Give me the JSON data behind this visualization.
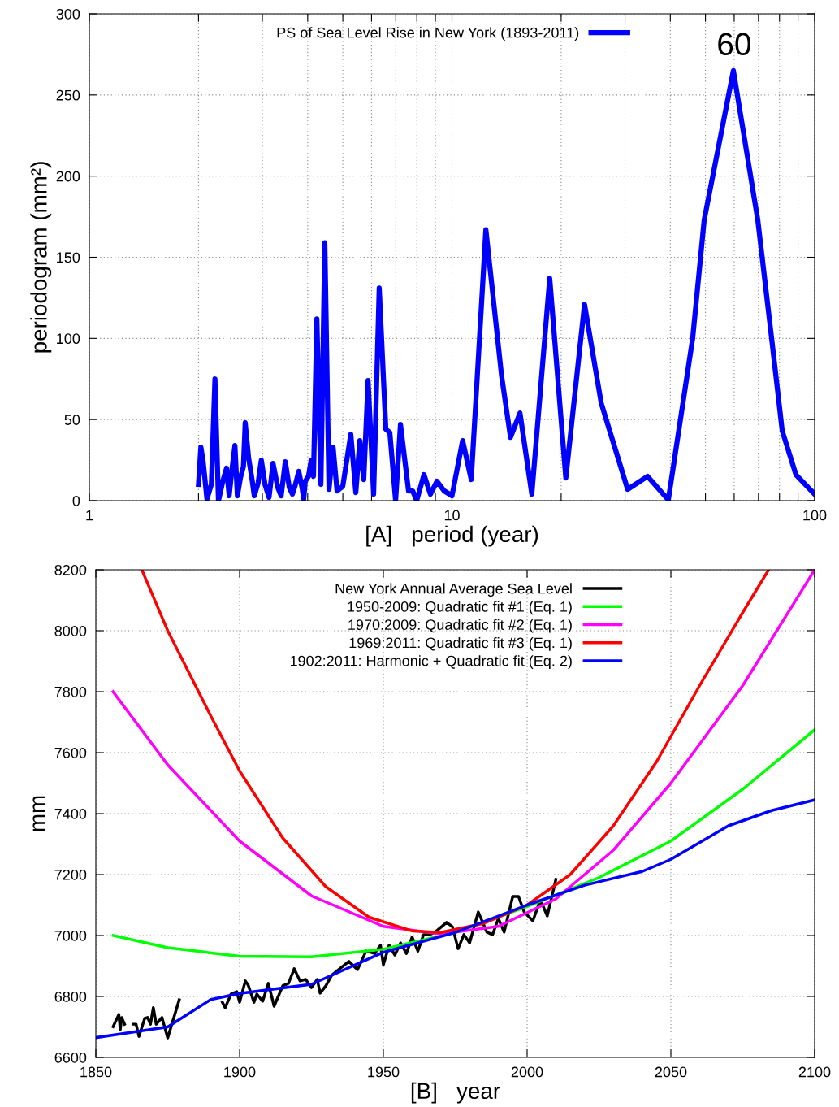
{
  "chart_data": [
    {
      "type": "line",
      "xlabel": "[A]   period (year)",
      "ylabel": "periodogram (mm²)",
      "log": "x",
      "grid": true,
      "legend": "top",
      "xlim": [
        1,
        100
      ],
      "ylim": [
        0,
        300
      ],
      "xticks": [
        1,
        {
          "value": 2,
          "label": null
        },
        {
          "value": 3,
          "label": null
        },
        {
          "value": 4,
          "label": null
        },
        {
          "value": 5,
          "label": null
        },
        {
          "value": 6,
          "label": null
        },
        {
          "value": 7,
          "label": null
        },
        {
          "value": 8,
          "label": null
        },
        {
          "value": 9,
          "label": null
        },
        10,
        {
          "value": 20,
          "label": null
        },
        {
          "value": 30,
          "label": null
        },
        {
          "value": 40,
          "label": null
        },
        {
          "value": 50,
          "label": null
        },
        {
          "value": 60,
          "label": null
        },
        {
          "value": 70,
          "label": null
        },
        {
          "value": 80,
          "label": null
        },
        {
          "value": 90,
          "label": null
        },
        100
      ],
      "yticks": [
        0,
        50,
        100,
        150,
        200,
        250,
        300
      ],
      "annotations": [
        {
          "text": "60",
          "x": 60,
          "y": 265
        }
      ],
      "series": [
        {
          "name": "PS of Sea Level Rise in New York (1893-2011)",
          "color": "#0000ff",
          "x": [
            2.0,
            2.03,
            2.06,
            2.11,
            2.17,
            2.22,
            2.27,
            2.34,
            2.39,
            2.43,
            2.47,
            2.52,
            2.56,
            2.61,
            2.66,
            2.69,
            2.75,
            2.81,
            2.85,
            2.92,
            2.98,
            3.05,
            3.13,
            3.21,
            3.31,
            3.38,
            3.47,
            3.56,
            3.63,
            3.69,
            3.78,
            3.86,
            3.9,
            3.94,
            4.02,
            4.09,
            4.15,
            4.24,
            4.35,
            4.46,
            4.58,
            4.7,
            4.82,
            5.0,
            5.26,
            5.43,
            5.57,
            5.71,
            5.87,
            6.08,
            6.3,
            6.57,
            6.74,
            6.99,
            7.21,
            7.59,
            7.79,
            7.99,
            8.37,
            8.72,
            9.09,
            9.52,
            10.0,
            10.7,
            11.3,
            12.4,
            13.7,
            14.5,
            15.4,
            16.6,
            18.6,
            20.6,
            23.2,
            25.8,
            30.5,
            34.6,
            39.5,
            46.1,
            49.6,
            59.7,
            69.7,
            76.1,
            81.4,
            88.8,
            100
          ],
          "values": [
            10,
            33,
            24,
            1,
            10,
            75,
            0,
            13,
            20,
            3,
            18,
            34,
            3,
            14,
            21,
            48,
            26,
            13,
            3,
            11,
            25,
            10,
            2,
            23,
            8,
            3,
            24,
            8,
            4,
            9,
            18,
            8,
            1,
            12,
            15,
            25,
            15,
            112,
            10,
            159,
            7,
            33,
            6,
            9,
            41,
            5,
            37,
            13,
            74,
            4,
            131,
            44,
            42,
            0,
            47,
            6,
            6,
            0,
            16,
            4,
            12,
            6,
            3,
            37,
            13,
            167,
            77,
            39,
            54,
            4,
            137,
            14,
            121,
            60,
            7,
            15,
            0.5,
            100,
            173,
            265,
            173,
            100,
            43,
            16,
            4
          ]
        }
      ]
    },
    {
      "type": "line",
      "xlabel": "[B]   year",
      "ylabel": "mm",
      "grid": true,
      "legend": "top",
      "xlim": [
        1850,
        2100
      ],
      "ylim": [
        6600,
        8200
      ],
      "xticks": [
        1850,
        1900,
        1950,
        2000,
        2050,
        2100
      ],
      "yticks": [
        6600,
        6800,
        7000,
        7200,
        7400,
        7600,
        7800,
        8000,
        8200
      ],
      "series": [
        {
          "name": "New York Annual Average Sea Level",
          "color": "#000000",
          "x": [
            1856,
            1858,
            1858.5,
            1859,
            1860,
            1861,
            1863,
            1864,
            1865,
            1867,
            1868,
            1869,
            1870,
            1871,
            1873,
            1875,
            1879,
            1885,
            1894,
            1895,
            1897,
            1899,
            1900,
            1902,
            1903,
            1905,
            1906,
            1908,
            1910,
            1912,
            1915,
            1917,
            1919,
            1921,
            1923,
            1925,
            1927,
            1928,
            1930,
            1932,
            1933,
            1938,
            1941,
            1944,
            1947,
            1949,
            1950,
            1952,
            1954,
            1956,
            1958,
            1960,
            1962,
            1964,
            1966,
            1968,
            1972,
            1974,
            1976,
            1978,
            1980,
            1983,
            1986,
            1988,
            1990,
            1992,
            1995,
            1997,
            1999,
            2002,
            2004,
            2005,
            2007,
            2010
          ],
          "values": [
            6701,
            6741,
            6691,
            6731,
            6709,
            null,
            6709,
            6709,
            6669,
            6728,
            6731,
            6709,
            6763,
            6709,
            6731,
            6664,
            6789,
            null,
            6781,
            6763,
            6808,
            6816,
            6781,
            6851,
            6837,
            6781,
            6808,
            6784,
            6843,
            6768,
            6835,
            6843,
            6891,
            6851,
            6856,
            6829,
            6856,
            6811,
            6835,
            6869,
            6877,
            6915,
            6888,
            6949,
            6941,
            6968,
            6904,
            6968,
            6936,
            6976,
            6941,
            6995,
            6949,
            7003,
            7003,
            7011,
            7043,
            7029,
            6957,
            7003,
            6976,
            7077,
            7011,
            7003,
            7056,
            7011,
            7128,
            7128,
            7077,
            7048,
            7101,
            7109,
            7064,
            7184
          ]
        },
        {
          "name": "1950-2009: Quadratic fit #1 (Eq. 1)",
          "color": "#00ff00",
          "x": [
            1856,
            1875,
            1900,
            1925,
            1950,
            1975,
            2000,
            2025,
            2050,
            2075,
            2100
          ],
          "values": [
            7000,
            6960,
            6932,
            6930,
            6955,
            7010,
            7095,
            7190,
            7310,
            7480,
            7675
          ]
        },
        {
          "name": "1970:2009: Quadratic fit #2 (Eq. 1)",
          "color": "#ff00ff",
          "x": [
            1856,
            1875,
            1900,
            1925,
            1950,
            1970,
            1990,
            2010,
            2030,
            2050,
            2075,
            2100
          ],
          "values": [
            7800,
            7560,
            7310,
            7130,
            7030,
            7005,
            7030,
            7120,
            7280,
            7500,
            7820,
            8200
          ]
        },
        {
          "name": "1969:2011: Quadratic fit #3 (Eq. 1)",
          "color": "#ff0000",
          "x": [
            1866,
            1875,
            1890,
            1900,
            1915,
            1930,
            1945,
            1960,
            1970,
            1985,
            2000,
            2015,
            2030,
            2045,
            2060,
            2075,
            2084
          ],
          "values": [
            8200,
            8000,
            7720,
            7540,
            7320,
            7160,
            7060,
            7015,
            7010,
            7040,
            7100,
            7200,
            7360,
            7570,
            7820,
            8060,
            8200
          ]
        },
        {
          "name": "1902:2011: Harmonic + Quadratic fit (Eq. 2)",
          "color": "#0000ff",
          "x": [
            1850,
            1875,
            1890,
            1900,
            1925,
            1950,
            1975,
            2000,
            2020,
            2040,
            2050,
            2070,
            2085,
            2100
          ],
          "values": [
            6665,
            6700,
            6790,
            6810,
            6840,
            6945,
            7010,
            7100,
            7165,
            7210,
            7250,
            7360,
            7410,
            7445
          ]
        }
      ]
    }
  ]
}
